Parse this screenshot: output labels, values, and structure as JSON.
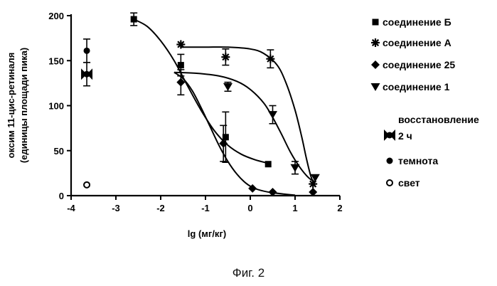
{
  "chart_data": {
    "type": "scatter",
    "title": "",
    "xlabel": "lg (мг/кг)",
    "ylabel_line1": "оксим 11-цис-ретиналя",
    "ylabel_line2": "(единицы площади пика)",
    "xlim": [
      -4,
      2
    ],
    "ylim": [
      0,
      200
    ],
    "x_ticks": [
      -4,
      -3,
      -2,
      -1,
      0,
      1,
      2
    ],
    "y_ticks": [
      0,
      50,
      100,
      150,
      200
    ],
    "x_tick_labels": [
      "-4",
      "-3",
      "-2",
      "-1",
      "0",
      "1",
      "2"
    ],
    "y_tick_labels": [
      "0",
      "50",
      "100",
      "150",
      "200"
    ],
    "series": [
      {
        "name": "соединение Б",
        "marker": "square",
        "points": [
          {
            "x": -2.6,
            "y": 196,
            "err": 7
          },
          {
            "x": -1.55,
            "y": 145,
            "err": 12
          },
          {
            "x": -0.55,
            "y": 65,
            "err": 28
          },
          {
            "x": 0.4,
            "y": 35,
            "err": 0
          }
        ],
        "curve": [
          [
            -2.6,
            196
          ],
          [
            -2.3,
            188
          ],
          [
            -2.0,
            172
          ],
          [
            -1.7,
            150
          ],
          [
            -1.4,
            122
          ],
          [
            -1.1,
            95
          ],
          [
            -0.8,
            72
          ],
          [
            -0.5,
            56
          ],
          [
            -0.2,
            46
          ],
          [
            0.1,
            40
          ],
          [
            0.4,
            36
          ]
        ]
      },
      {
        "name": "соединение А",
        "marker": "asterisk",
        "points": [
          {
            "x": -1.55,
            "y": 168,
            "err": 0
          },
          {
            "x": -0.55,
            "y": 154,
            "err": 9
          },
          {
            "x": 0.45,
            "y": 152,
            "err": 10
          },
          {
            "x": 1.4,
            "y": 13,
            "err": 0
          }
        ],
        "curve": [
          [
            -1.55,
            165
          ],
          [
            -1.0,
            165
          ],
          [
            -0.5,
            165
          ],
          [
            0.0,
            163
          ],
          [
            0.3,
            158
          ],
          [
            0.6,
            145
          ],
          [
            0.8,
            125
          ],
          [
            1.0,
            95
          ],
          [
            1.15,
            65
          ],
          [
            1.25,
            42
          ],
          [
            1.35,
            22
          ],
          [
            1.45,
            10
          ]
        ]
      },
      {
        "name": "соединение 25",
        "marker": "diamond",
        "points": [
          {
            "x": -1.55,
            "y": 126,
            "err": 14
          },
          {
            "x": -0.6,
            "y": 58,
            "err": 20
          },
          {
            "x": 0.05,
            "y": 8,
            "err": 0
          },
          {
            "x": 0.5,
            "y": 4,
            "err": 0
          },
          {
            "x": 1.4,
            "y": 4,
            "err": 0
          }
        ],
        "curve": [
          [
            -1.7,
            137
          ],
          [
            -1.5,
            130
          ],
          [
            -1.3,
            117
          ],
          [
            -1.1,
            98
          ],
          [
            -0.9,
            77
          ],
          [
            -0.7,
            56
          ],
          [
            -0.5,
            38
          ],
          [
            -0.3,
            24
          ],
          [
            -0.1,
            14
          ],
          [
            0.1,
            8
          ],
          [
            0.4,
            4
          ],
          [
            0.8,
            1.5
          ],
          [
            1.0,
            0.5
          ]
        ]
      },
      {
        "name": "соединение 1",
        "marker": "triangle-down",
        "points": [
          {
            "x": -0.5,
            "y": 121,
            "err": 5
          },
          {
            "x": 0.5,
            "y": 90,
            "err": 10
          },
          {
            "x": 1.0,
            "y": 31,
            "err": 7
          },
          {
            "x": 1.45,
            "y": 20,
            "err": 0
          }
        ],
        "curve": [
          [
            -1.7,
            137
          ],
          [
            -1.2,
            136
          ],
          [
            -0.7,
            133
          ],
          [
            -0.3,
            127
          ],
          [
            0.0,
            118
          ],
          [
            0.3,
            103
          ],
          [
            0.5,
            87
          ],
          [
            0.7,
            68
          ],
          [
            0.9,
            48
          ],
          [
            1.1,
            32
          ],
          [
            1.3,
            20
          ],
          [
            1.45,
            15
          ]
        ]
      },
      {
        "name": "восстановление 2 ч",
        "marker": "bowtie",
        "points": [
          {
            "x": -3.65,
            "y": 135,
            "err": 13
          }
        ]
      },
      {
        "name": "темнота",
        "marker": "circle-filled",
        "points": [
          {
            "x": -3.65,
            "y": 161,
            "err": 13
          }
        ]
      },
      {
        "name": "свет",
        "marker": "circle-open",
        "points": [
          {
            "x": -3.65,
            "y": 12,
            "err": 0
          }
        ]
      }
    ],
    "legend": {
      "placement": "right",
      "items": [
        {
          "label": "соединение Б",
          "marker": "square"
        },
        {
          "label": "соединение А",
          "marker": "asterisk"
        },
        {
          "label": "соединение 25",
          "marker": "diamond"
        },
        {
          "label": "соединение 1",
          "marker": "triangle-down"
        },
        {
          "label": "восстановление",
          "label2": "2 ч",
          "marker": "bowtie"
        },
        {
          "label": "темнота",
          "marker": "circle-filled"
        },
        {
          "label": "свет",
          "marker": "circle-open"
        }
      ]
    }
  },
  "caption": "Фиг. 2"
}
